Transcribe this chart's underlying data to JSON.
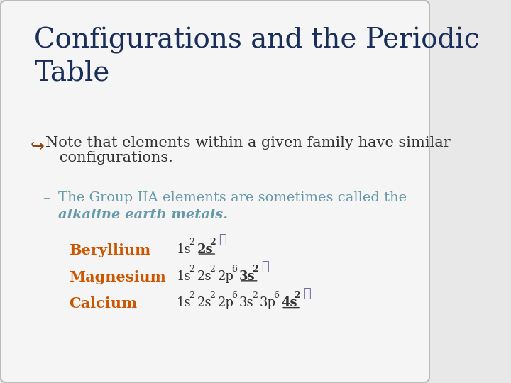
{
  "background_color": "#e8e8e8",
  "slide_bg": "#f5f5f5",
  "title": "Configurations and the Periodic\nTable",
  "title_color": "#1a2e5a",
  "title_fontsize": 28,
  "bullet_symbol": "↪",
  "bullet_color": "#8b4513",
  "bullet_text_line1": "Note that elements within a given family have similar",
  "bullet_text_line2": "   configurations.",
  "bullet_fontsize": 15,
  "sub_dash_color": "#6699aa",
  "sub_text1": "The Group IIA elements are sometimes called the",
  "sub_text2": "alkaline earth metals.",
  "sub_fontsize": 14,
  "element_color": "#cc5500",
  "element_fontsize": 15,
  "elements": [
    "Beryllium",
    "Magnesium",
    "Calcium"
  ],
  "config_color": "#333333",
  "config_fontsize": 13,
  "sup_fontsize": 9,
  "underline_color": "#333333",
  "check_color": "#7766aa",
  "check_fontsize": 13
}
